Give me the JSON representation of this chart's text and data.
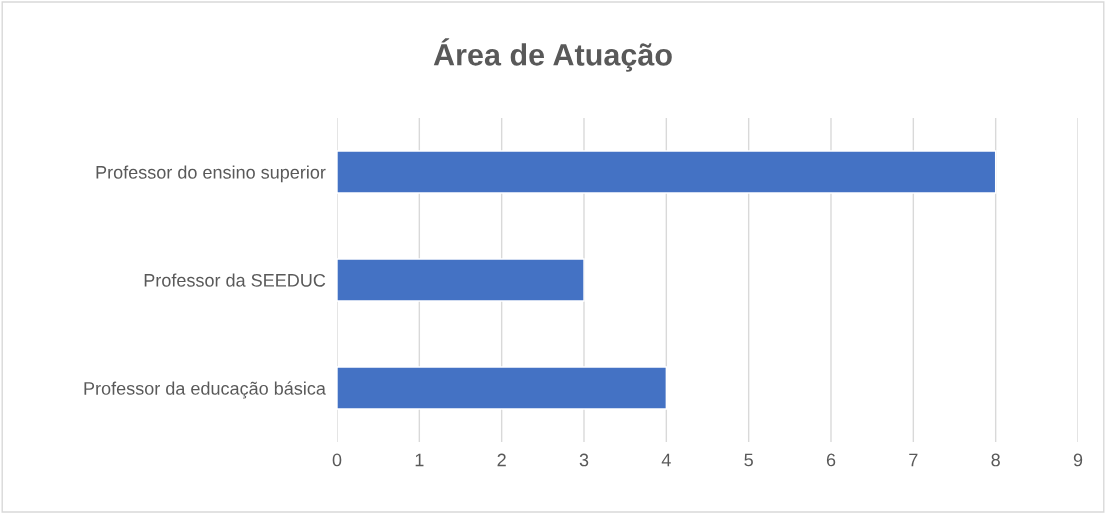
{
  "chart_data": {
    "type": "bar",
    "title": "Área de Atuação",
    "orientation": "horizontal",
    "categories": [
      "Professor do ensino superior",
      "Professor da SEEDUC",
      "Professor da educação básica"
    ],
    "values": [
      8,
      3,
      4
    ],
    "color": "#4472c4",
    "xlim": [
      0,
      9
    ],
    "xticks": [
      0,
      1,
      2,
      3,
      4,
      5,
      6,
      7,
      8,
      9
    ],
    "grid": "x",
    "legend": false
  }
}
